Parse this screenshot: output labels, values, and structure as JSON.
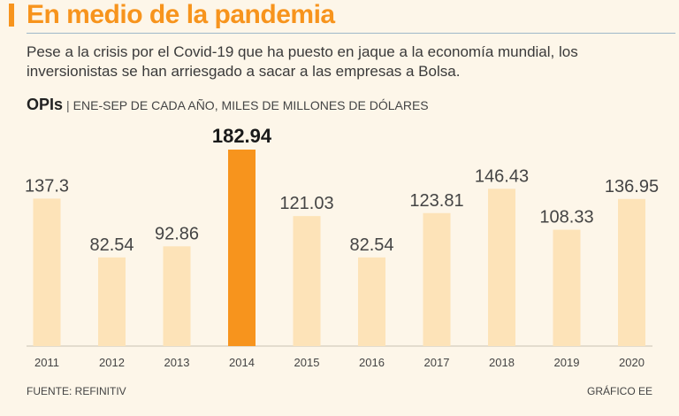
{
  "header": {
    "title": "En medio de la pandemia",
    "subtitle": "Pese a la crisis por el Covid-19 que ha puesto en jaque a la economía mundial, los inversionistas se han arriesgado a sacar a las empresas a Bolsa.",
    "chart_label": "OPIs",
    "separator": "|",
    "chart_unit": "ENE-SEP DE CADA AÑO, MILES DE MILLONES DE DÓLARES"
  },
  "footer": {
    "source": "FUENTE: REFINITIV",
    "credit": "GRÁFICO EE"
  },
  "colors": {
    "accent": "#f7941d",
    "bar": "#fde3b8",
    "highlight": "#f7941d",
    "background": "#fdf6e9"
  },
  "chart_data": {
    "type": "bar",
    "title": "OPIs",
    "subtitle": "ENE-SEP DE CADA AÑO, MILES DE MILLONES DE DÓLARES",
    "categories": [
      "2011",
      "2012",
      "2013",
      "2014",
      "2015",
      "2016",
      "2017",
      "2018",
      "2019",
      "2020"
    ],
    "values": [
      137.3,
      82.54,
      92.86,
      182.94,
      121.03,
      82.54,
      123.81,
      146.43,
      108.33,
      136.95
    ],
    "value_labels": [
      "137.3",
      "82.54",
      "92.86",
      "182.94",
      "121.03",
      "82.54",
      "123.81",
      "146.43",
      "108.33",
      "136.95"
    ],
    "highlight_index": 3,
    "xlabel": "",
    "ylabel": "",
    "ylim": [
      0,
      182.94
    ],
    "grid": false
  }
}
